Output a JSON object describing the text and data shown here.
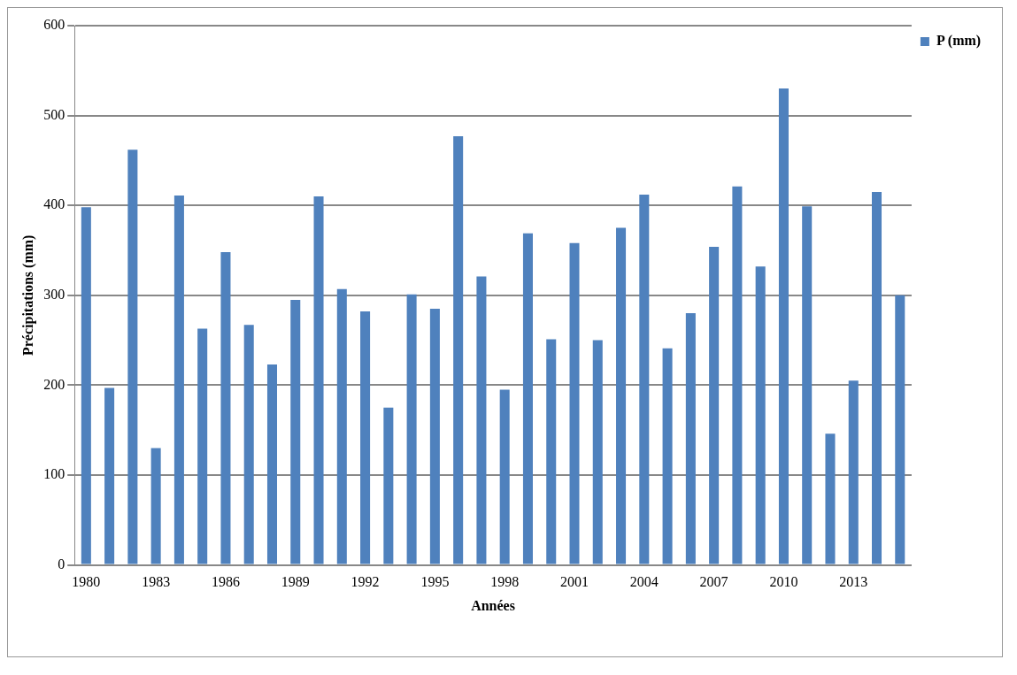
{
  "chart_data": {
    "type": "bar",
    "xlabel": "Années",
    "ylabel": "Précipitations (mm)",
    "categories": [
      "1980",
      null,
      null,
      "1983",
      null,
      null,
      "1986",
      null,
      null,
      "1989",
      null,
      null,
      "1992",
      null,
      null,
      "1995",
      null,
      null,
      "1998",
      null,
      null,
      "2001",
      null,
      null,
      "2004",
      null,
      null,
      "2007",
      null,
      null,
      "2010",
      null,
      null,
      "2013",
      null,
      null
    ],
    "series": [
      {
        "name": "P (mm)",
        "color": "#4f81bd",
        "values": [
          398,
          197,
          462,
          130,
          411,
          263,
          348,
          267,
          223,
          295,
          410,
          307,
          282,
          175,
          301,
          285,
          477,
          321,
          195,
          369,
          251,
          358,
          250,
          375,
          412,
          241,
          280,
          354,
          421,
          332,
          530,
          399,
          146,
          205,
          415,
          300
        ]
      }
    ],
    "ylim": [
      0,
      600
    ],
    "yticks": [
      0,
      100,
      200,
      300,
      400,
      500,
      600
    ],
    "grid": "y",
    "legend": "top right"
  }
}
